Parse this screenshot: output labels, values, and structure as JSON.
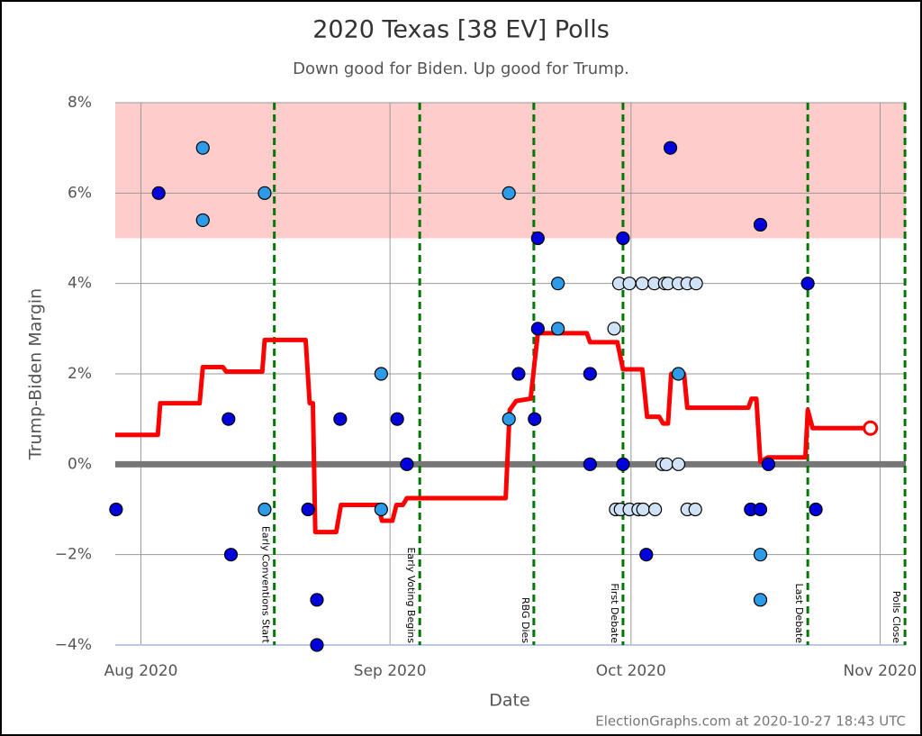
{
  "chart_data": {
    "type": "scatter",
    "title": "2020 Texas [38 EV] Polls",
    "subtitle": "Down good for Biden. Up good for Trump.",
    "x_label": "Date",
    "y_label": "Trump-Biden Margin",
    "footer": "ElectionGraphs.com at 2020-10-27 18:43 UTC",
    "xlim": [
      -3.2,
      95.2
    ],
    "ylim": [
      -4,
      8
    ],
    "xticks": [
      {
        "value": 0,
        "label": "Aug 2020"
      },
      {
        "value": 31,
        "label": "Sep 2020"
      },
      {
        "value": 61,
        "label": "Oct 2020"
      },
      {
        "value": 92,
        "label": "Nov 2020"
      }
    ],
    "yticks": [
      {
        "value": -4,
        "label": "−4%"
      },
      {
        "value": -2,
        "label": "−2%"
      },
      {
        "value": 0,
        "label": "0%"
      },
      {
        "value": 2,
        "label": "2%"
      },
      {
        "value": 4,
        "label": "4%"
      },
      {
        "value": 6,
        "label": "6%"
      },
      {
        "value": 8,
        "label": "8%"
      }
    ],
    "grid": true,
    "band": {
      "from": 5,
      "to": 8,
      "color": "#ffcccc"
    },
    "annotations": [
      {
        "x": 16.6,
        "label": "Early Conventions Start"
      },
      {
        "x": 34.7,
        "label": "Early Voting Begins"
      },
      {
        "x": 48.9,
        "label": "RBG Dies"
      },
      {
        "x": 60.0,
        "label": "First Debate"
      },
      {
        "x": 83.0,
        "label": "Last Debate"
      },
      {
        "x": 95.1,
        "label": "Polls Close"
      }
    ],
    "series": [
      {
        "color": "#0000dd",
        "x": [
          -3.1,
          2.2,
          10.9,
          11.2,
          20.8,
          21.9,
          21.9,
          24.8,
          31.9,
          33.1,
          47.0,
          49.0,
          49.4,
          49.4,
          55.9,
          55.9,
          60.0,
          60.0,
          62.9,
          65.9,
          75.9,
          77.1,
          77.1,
          78.1,
          83.0,
          84.0
        ],
        "values": [
          -1,
          6,
          1,
          -2,
          -1,
          -3,
          -4,
          1,
          1,
          0,
          2,
          1,
          5,
          3,
          2,
          0,
          5,
          0,
          -2,
          7,
          -1,
          -1,
          5.3,
          0,
          4,
          -1
        ]
      },
      {
        "color": "#2e9be8",
        "x": [
          7.7,
          7.7,
          15.4,
          15.4,
          29.9,
          29.9,
          45.8,
          45.8,
          51.9,
          51.9,
          66.9,
          77.1,
          77.1
        ],
        "values": [
          7,
          5.4,
          6,
          -1,
          2,
          -1,
          6,
          1,
          4,
          3,
          2,
          -2,
          -3
        ]
      },
      {
        "color": "#cfe2f6",
        "x": [
          58.9,
          59.5,
          59.1,
          59.7,
          60.8,
          60.8,
          61.9,
          62.4,
          62.5,
          63.9,
          64.0,
          64.9,
          65.2,
          65.4,
          65.6,
          66.9,
          66.9,
          68.0,
          68.0,
          69.0,
          69.1
        ],
        "values": [
          3,
          4,
          -1,
          -1,
          -1,
          4,
          -1,
          4,
          -1,
          4,
          -1,
          0,
          4,
          0,
          4,
          0,
          4,
          4,
          -1,
          -1,
          4
        ]
      }
    ],
    "average": {
      "color": "#ff0000",
      "x": [
        -3.2,
        2.1,
        2.4,
        7.3,
        7.7,
        10.2,
        10.6,
        15.1,
        15.4,
        20.5,
        21.0,
        21.4,
        21.7,
        24.3,
        24.9,
        29.5,
        30.0,
        31.3,
        31.8,
        32.6,
        33.1,
        45.4,
        45.9,
        46.7,
        48.5,
        49.4,
        55.5,
        55.9,
        59.3,
        60.0,
        62.4,
        63.0,
        64.5,
        65.0,
        65.6,
        66.0,
        67.6,
        68.0,
        75.6,
        76.0,
        76.6,
        77.1,
        78.0,
        82.7,
        83.0,
        83.6,
        90.8
      ],
      "values": [
        0.65,
        0.65,
        1.35,
        1.35,
        2.15,
        2.15,
        2.05,
        2.05,
        2.75,
        2.75,
        1.35,
        1.35,
        -1.5,
        -1.5,
        -0.9,
        -0.9,
        -1.25,
        -1.25,
        -0.9,
        -0.9,
        -0.75,
        -0.75,
        1.2,
        1.4,
        1.45,
        2.9,
        2.9,
        2.7,
        2.7,
        2.1,
        2.1,
        1.05,
        1.05,
        0.9,
        0.9,
        2.0,
        2.0,
        1.25,
        1.25,
        1.45,
        1.45,
        0.05,
        0.15,
        0.15,
        1.2,
        0.8,
        0.8
      ]
    }
  }
}
